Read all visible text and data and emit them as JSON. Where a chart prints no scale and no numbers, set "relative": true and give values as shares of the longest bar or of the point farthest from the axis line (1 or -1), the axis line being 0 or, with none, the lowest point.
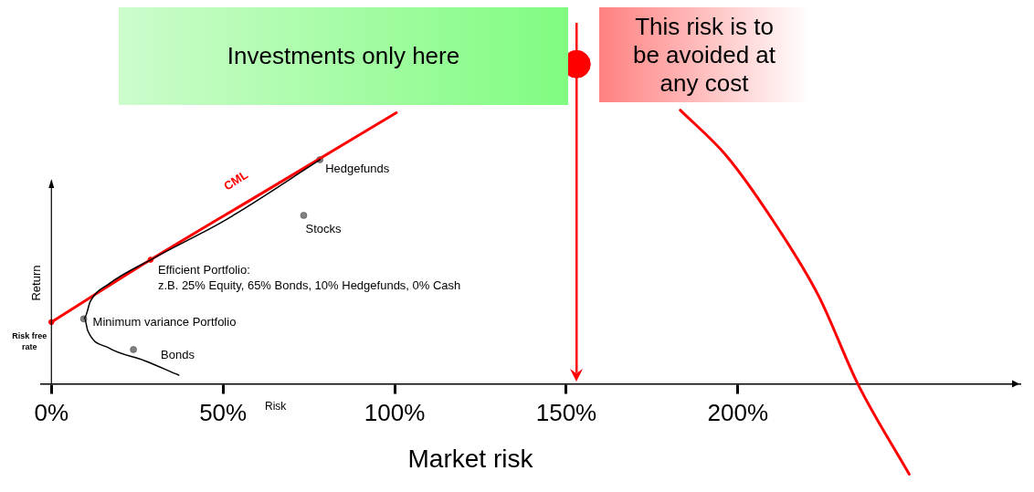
{
  "chart_data": {
    "type": "line",
    "xlabel": "Market risk",
    "ylabel": "Return",
    "relative": true,
    "legend": false,
    "grid": false,
    "xlim": [
      -3,
      282
    ],
    "xticks": [
      {
        "value": 0,
        "label": "0%"
      },
      {
        "value": 50,
        "label": "50%"
      },
      {
        "value": 100,
        "label": "100%"
      },
      {
        "value": 150,
        "label": "150%"
      },
      {
        "value": 200,
        "label": "200%"
      }
    ],
    "series": [
      {
        "type": "line",
        "color": "#000000",
        "marker": "none",
        "x": [
          37.1,
          27.2,
          16.7,
          10.6,
          9.6,
          11.4,
          16.7,
          29.8,
          50.8,
          78.3
        ],
        "values": [
          0.027,
          0.072,
          0.112,
          0.166,
          0.206,
          0.259,
          0.312,
          0.393,
          0.513,
          0.701
        ]
      },
      {
        "type": "line",
        "color": "#ff0000",
        "marker": "none",
        "x": [
          0,
          28.9,
          63.8,
          100.5,
          150,
          183.2,
          196.6,
          210.2,
          223.6,
          234.9,
          249.9
        ],
        "values": [
          0.193,
          0.388,
          0.612,
          0.848,
          null,
          0.856,
          0.714,
          0.511,
          0.273,
          0,
          -0.283
        ]
      },
      {
        "type": "scatter",
        "color": "#808080",
        "marker": "circle",
        "x": [
          78.2,
          73.5,
          23.9,
          9.4
        ],
        "values": [
          0.701,
          0.527,
          0.107,
          0.203
        ]
      },
      {
        "type": "bubble",
        "color": "#ff0000",
        "x": [
          0,
          28.9,
          153
        ],
        "values": [
          0.193,
          0.388,
          1
        ],
        "sizes": [
          0.035,
          0.035,
          1
        ]
      }
    ],
    "ref_lines": [
      {
        "axis": "x",
        "value": 153,
        "color": "#ff0000"
      }
    ],
    "annotations": [
      "Investments only here",
      "This risk is to be avoided at any cost",
      "Risk",
      {
        "text": "Hedgefunds",
        "x": 78.2,
        "y": 0.701
      },
      {
        "text": "Stocks",
        "x": 73.5,
        "y": 0.527
      },
      {
        "text": "Bonds",
        "x": 23.9,
        "y": 0.107
      },
      {
        "text": "Minimum variance Portfolio",
        "x": 9.4,
        "y": 0.203
      },
      {
        "text": "Efficient Portfolio:\nz.B. 25% Equity, 65% Bonds, 10% Hedgefunds, 0% Cash",
        "x": 28.9,
        "y": 0.388
      },
      {
        "text": "Risk free\nrate",
        "x": 0,
        "y": 0.193
      },
      "CML"
    ]
  }
}
